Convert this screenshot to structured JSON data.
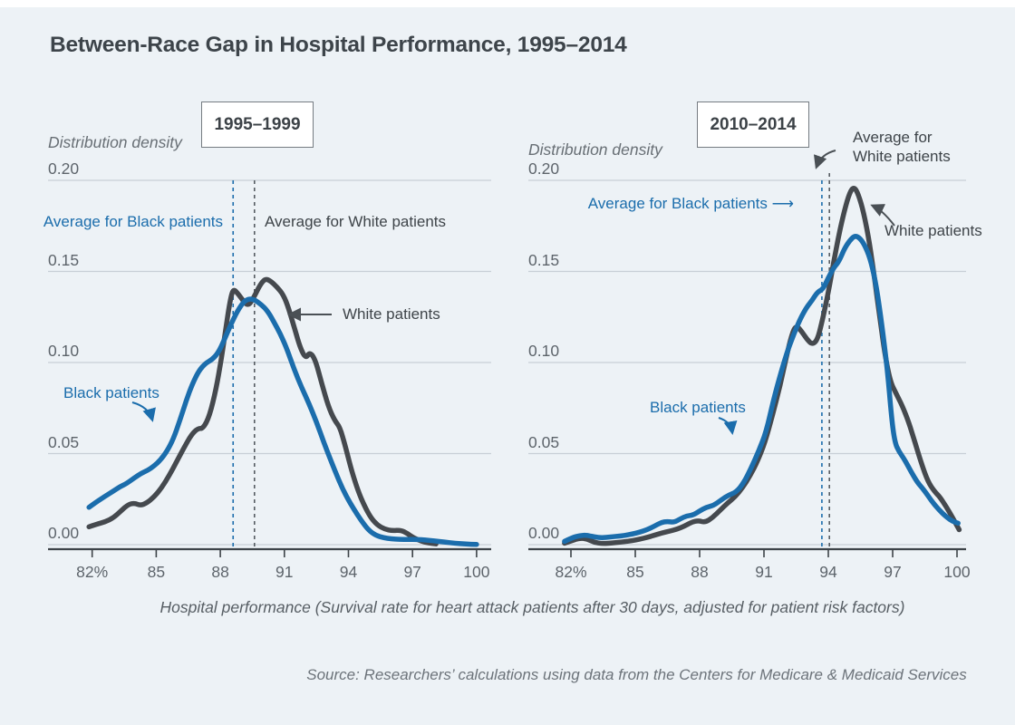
{
  "title": "Between-Race Gap in Hospital Performance, 1995–2014",
  "source": "Source: Researchers’ calculations using data from the Centers for Medicare & Medicaid Services",
  "axis": {
    "xlabel": "Hospital performance (Survival rate for heart attack patients after 30 days, adjusted for patient risk factors)",
    "x_tick_labels": [
      "82%",
      "85",
      "88",
      "91",
      "94",
      "97",
      "100"
    ],
    "y_tick_labels": [
      "0.20",
      "0.15",
      "0.10",
      "0.05",
      "0.00"
    ]
  },
  "panels": [
    {
      "period": "1995–1999",
      "ylabel": "Distribution density",
      "avg_black_label": "Average for Black patients",
      "avg_white_label": "Average for White patients",
      "black_label": "Black patients",
      "white_label": "White patients",
      "white_arrow_prefix": "←"
    },
    {
      "period": "2010–2014",
      "ylabel": "Distribution density",
      "avg_black_label": "Average for Black patients ⟶",
      "avg_white_label": "Average for White patients",
      "black_label": "Black patients",
      "white_label": "White patients"
    }
  ],
  "colors": {
    "background": "#edf2f6",
    "blue": "#1b6dac",
    "dark_gray": "#45494e",
    "grid": "#c8cfd6",
    "axis": "#3d4348",
    "dashed_dark": "#565c62"
  },
  "chart_data": [
    {
      "type": "line",
      "title": "1995–1999",
      "xlabel": "Hospital performance (%)",
      "ylabel": "Distribution density",
      "xlim": [
        81.5,
        100.5
      ],
      "ylim": [
        0,
        0.2
      ],
      "x_ticks": [
        82,
        85,
        88,
        91,
        94,
        97,
        100
      ],
      "y_ticks": [
        0,
        0.05,
        0.1,
        0.15,
        0.2
      ],
      "grid": true,
      "mean_black": 88.6,
      "mean_white": 89.6,
      "series": [
        {
          "name": "White patients",
          "color": "#45494e",
          "points": [
            [
              81.85,
              0.0098
            ],
            [
              82.2,
              0.0112
            ],
            [
              82.6,
              0.0125
            ],
            [
              83,
              0.0148
            ],
            [
              83.35,
              0.0185
            ],
            [
              83.7,
              0.0222
            ],
            [
              84,
              0.0228
            ],
            [
              84.25,
              0.0215
            ],
            [
              84.55,
              0.0228
            ],
            [
              84.9,
              0.0262
            ],
            [
              85.25,
              0.0312
            ],
            [
              85.6,
              0.0378
            ],
            [
              85.95,
              0.0455
            ],
            [
              86.3,
              0.0532
            ],
            [
              86.65,
              0.0605
            ],
            [
              86.95,
              0.0638
            ],
            [
              87.2,
              0.0638
            ],
            [
              87.5,
              0.0708
            ],
            [
              87.8,
              0.0852
            ],
            [
              88.05,
              0.102
            ],
            [
              88.25,
              0.1178
            ],
            [
              88.45,
              0.1335
            ],
            [
              88.6,
              0.1405
            ],
            [
              88.8,
              0.1382
            ],
            [
              89.05,
              0.1342
            ],
            [
              89.3,
              0.131
            ],
            [
              89.55,
              0.1352
            ],
            [
              89.85,
              0.1425
            ],
            [
              90.1,
              0.146
            ],
            [
              90.35,
              0.1448
            ],
            [
              90.65,
              0.1415
            ],
            [
              90.95,
              0.1372
            ],
            [
              91.2,
              0.1298
            ],
            [
              91.5,
              0.1178
            ],
            [
              91.75,
              0.1078
            ],
            [
              92,
              0.1022
            ],
            [
              92.2,
              0.1058
            ],
            [
              92.45,
              0.1015
            ],
            [
              92.75,
              0.0885
            ],
            [
              93.05,
              0.0762
            ],
            [
              93.35,
              0.0682
            ],
            [
              93.6,
              0.0645
            ],
            [
              93.85,
              0.0542
            ],
            [
              94.15,
              0.0405
            ],
            [
              94.45,
              0.0295
            ],
            [
              94.75,
              0.0212
            ],
            [
              95.05,
              0.0148
            ],
            [
              95.35,
              0.0108
            ],
            [
              95.7,
              0.0085
            ],
            [
              96.05,
              0.0076
            ],
            [
              96.45,
              0.008
            ],
            [
              96.75,
              0.0062
            ],
            [
              97.05,
              0.0038
            ],
            [
              97.4,
              0.0019
            ],
            [
              97.75,
              0.0009
            ],
            [
              98.1,
              0.0004
            ]
          ]
        },
        {
          "name": "Black patients",
          "color": "#1b6dac",
          "points": [
            [
              81.85,
              0.0205
            ],
            [
              82.2,
              0.0235
            ],
            [
              82.6,
              0.0265
            ],
            [
              83,
              0.0295
            ],
            [
              83.3,
              0.0318
            ],
            [
              83.6,
              0.0335
            ],
            [
              84,
              0.0368
            ],
            [
              84.3,
              0.0392
            ],
            [
              84.6,
              0.0408
            ],
            [
              84.9,
              0.0432
            ],
            [
              85.2,
              0.0465
            ],
            [
              85.5,
              0.0512
            ],
            [
              85.8,
              0.058
            ],
            [
              86.1,
              0.068
            ],
            [
              86.4,
              0.079
            ],
            [
              86.7,
              0.0885
            ],
            [
              87,
              0.0955
            ],
            [
              87.3,
              0.0995
            ],
            [
              87.6,
              0.1015
            ],
            [
              87.9,
              0.1052
            ],
            [
              88.2,
              0.1128
            ],
            [
              88.5,
              0.121
            ],
            [
              88.8,
              0.1282
            ],
            [
              89.1,
              0.1335
            ],
            [
              89.35,
              0.135
            ],
            [
              89.6,
              0.1345
            ],
            [
              89.9,
              0.132
            ],
            [
              90.2,
              0.1285
            ],
            [
              90.5,
              0.1225
            ],
            [
              90.8,
              0.116
            ],
            [
              91.1,
              0.108
            ],
            [
              91.45,
              0.0965
            ],
            [
              91.8,
              0.0865
            ],
            [
              92.15,
              0.0775
            ],
            [
              92.5,
              0.0675
            ],
            [
              92.85,
              0.056
            ],
            [
              93.2,
              0.0455
            ],
            [
              93.55,
              0.0352
            ],
            [
              93.9,
              0.0265
            ],
            [
              94.25,
              0.0195
            ],
            [
              94.6,
              0.0132
            ],
            [
              94.95,
              0.0078
            ],
            [
              95.3,
              0.005
            ],
            [
              95.65,
              0.0038
            ],
            [
              96,
              0.0032
            ],
            [
              96.4,
              0.0029
            ],
            [
              96.8,
              0.0029
            ],
            [
              97.2,
              0.0029
            ],
            [
              97.6,
              0.0026
            ],
            [
              98,
              0.0021
            ],
            [
              98.5,
              0.0014
            ],
            [
              99,
              0.0008
            ],
            [
              99.5,
              0.0003
            ],
            [
              100,
              0.0001
            ]
          ]
        }
      ]
    },
    {
      "type": "line",
      "title": "2010–2014",
      "xlabel": "Hospital performance (%)",
      "ylabel": "Distribution density",
      "xlim": [
        81.5,
        100.5
      ],
      "ylim": [
        0,
        0.2
      ],
      "x_ticks": [
        82,
        85,
        88,
        91,
        94,
        97,
        100
      ],
      "y_ticks": [
        0,
        0.05,
        0.1,
        0.15,
        0.2
      ],
      "grid": true,
      "mean_black": 93.7,
      "mean_white": 94.05,
      "series": [
        {
          "name": "White patients",
          "color": "#45494e",
          "points": [
            [
              81.7,
              0.0008
            ],
            [
              82.05,
              0.0022
            ],
            [
              82.4,
              0.0036
            ],
            [
              82.75,
              0.0032
            ],
            [
              83.1,
              0.0012
            ],
            [
              83.45,
              0.0006
            ],
            [
              83.8,
              0.0008
            ],
            [
              84.15,
              0.0012
            ],
            [
              84.5,
              0.0016
            ],
            [
              84.85,
              0.0022
            ],
            [
              85.2,
              0.003
            ],
            [
              85.55,
              0.004
            ],
            [
              85.9,
              0.0052
            ],
            [
              86.25,
              0.0064
            ],
            [
              86.6,
              0.0074
            ],
            [
              86.95,
              0.0085
            ],
            [
              87.3,
              0.0102
            ],
            [
              87.65,
              0.0125
            ],
            [
              87.95,
              0.0132
            ],
            [
              88.25,
              0.0122
            ],
            [
              88.6,
              0.0148
            ],
            [
              88.95,
              0.0188
            ],
            [
              89.3,
              0.0228
            ],
            [
              89.65,
              0.0262
            ],
            [
              90,
              0.0312
            ],
            [
              90.35,
              0.0378
            ],
            [
              90.7,
              0.0458
            ],
            [
              91.05,
              0.0562
            ],
            [
              91.4,
              0.0712
            ],
            [
              91.75,
              0.0872
            ],
            [
              92.05,
              0.1035
            ],
            [
              92.3,
              0.1155
            ],
            [
              92.5,
              0.1205
            ],
            [
              92.75,
              0.1172
            ],
            [
              93,
              0.1128
            ],
            [
              93.25,
              0.1098
            ],
            [
              93.5,
              0.1125
            ],
            [
              93.75,
              0.1245
            ],
            [
              94,
              0.1385
            ],
            [
              94.25,
              0.1552
            ],
            [
              94.5,
              0.1705
            ],
            [
              94.75,
              0.1835
            ],
            [
              95,
              0.1935
            ],
            [
              95.2,
              0.1965
            ],
            [
              95.4,
              0.1925
            ],
            [
              95.65,
              0.1822
            ],
            [
              95.9,
              0.1672
            ],
            [
              96.15,
              0.1468
            ],
            [
              96.4,
              0.1245
            ],
            [
              96.65,
              0.1035
            ],
            [
              96.9,
              0.0892
            ],
            [
              97.15,
              0.0832
            ],
            [
              97.45,
              0.0762
            ],
            [
              97.75,
              0.0672
            ],
            [
              98.05,
              0.0558
            ],
            [
              98.35,
              0.0442
            ],
            [
              98.65,
              0.0345
            ],
            [
              98.95,
              0.0292
            ],
            [
              99.2,
              0.0262
            ],
            [
              99.5,
              0.0208
            ],
            [
              99.8,
              0.0148
            ],
            [
              100.1,
              0.0082
            ]
          ]
        },
        {
          "name": "Black patients",
          "color": "#1b6dac",
          "points": [
            [
              81.7,
              0.0018
            ],
            [
              82.05,
              0.0038
            ],
            [
              82.4,
              0.005
            ],
            [
              82.75,
              0.0052
            ],
            [
              83.1,
              0.0042
            ],
            [
              83.45,
              0.0038
            ],
            [
              83.8,
              0.0042
            ],
            [
              84.15,
              0.0046
            ],
            [
              84.5,
              0.005
            ],
            [
              84.85,
              0.0058
            ],
            [
              85.2,
              0.0068
            ],
            [
              85.55,
              0.0082
            ],
            [
              85.9,
              0.0102
            ],
            [
              86.2,
              0.0122
            ],
            [
              86.5,
              0.0128
            ],
            [
              86.8,
              0.0122
            ],
            [
              87.1,
              0.0142
            ],
            [
              87.4,
              0.0158
            ],
            [
              87.7,
              0.0162
            ],
            [
              88,
              0.0185
            ],
            [
              88.3,
              0.0205
            ],
            [
              88.65,
              0.0215
            ],
            [
              89,
              0.0245
            ],
            [
              89.35,
              0.0272
            ],
            [
              89.7,
              0.0288
            ],
            [
              90.05,
              0.0338
            ],
            [
              90.4,
              0.042
            ],
            [
              90.75,
              0.0512
            ],
            [
              91.1,
              0.0618
            ],
            [
              91.45,
              0.0798
            ],
            [
              91.8,
              0.0948
            ],
            [
              92.1,
              0.1065
            ],
            [
              92.4,
              0.1158
            ],
            [
              92.7,
              0.1242
            ],
            [
              93,
              0.1305
            ],
            [
              93.25,
              0.1342
            ],
            [
              93.5,
              0.1388
            ],
            [
              93.75,
              0.1402
            ],
            [
              94,
              0.1465
            ],
            [
              94.25,
              0.152
            ],
            [
              94.5,
              0.1555
            ],
            [
              94.75,
              0.1625
            ],
            [
              95,
              0.167
            ],
            [
              95.25,
              0.1698
            ],
            [
              95.5,
              0.168
            ],
            [
              95.75,
              0.1632
            ],
            [
              96,
              0.1552
            ],
            [
              96.25,
              0.1412
            ],
            [
              96.5,
              0.1205
            ],
            [
              96.75,
              0.0965
            ],
            [
              96.95,
              0.0695
            ],
            [
              97.1,
              0.0562
            ],
            [
              97.3,
              0.051
            ],
            [
              97.55,
              0.0468
            ],
            [
              97.85,
              0.0402
            ],
            [
              98.15,
              0.0342
            ],
            [
              98.45,
              0.0302
            ],
            [
              98.8,
              0.0242
            ],
            [
              99.15,
              0.0192
            ],
            [
              99.5,
              0.0152
            ],
            [
              99.8,
              0.0128
            ],
            [
              100.05,
              0.0118
            ]
          ]
        }
      ]
    }
  ]
}
